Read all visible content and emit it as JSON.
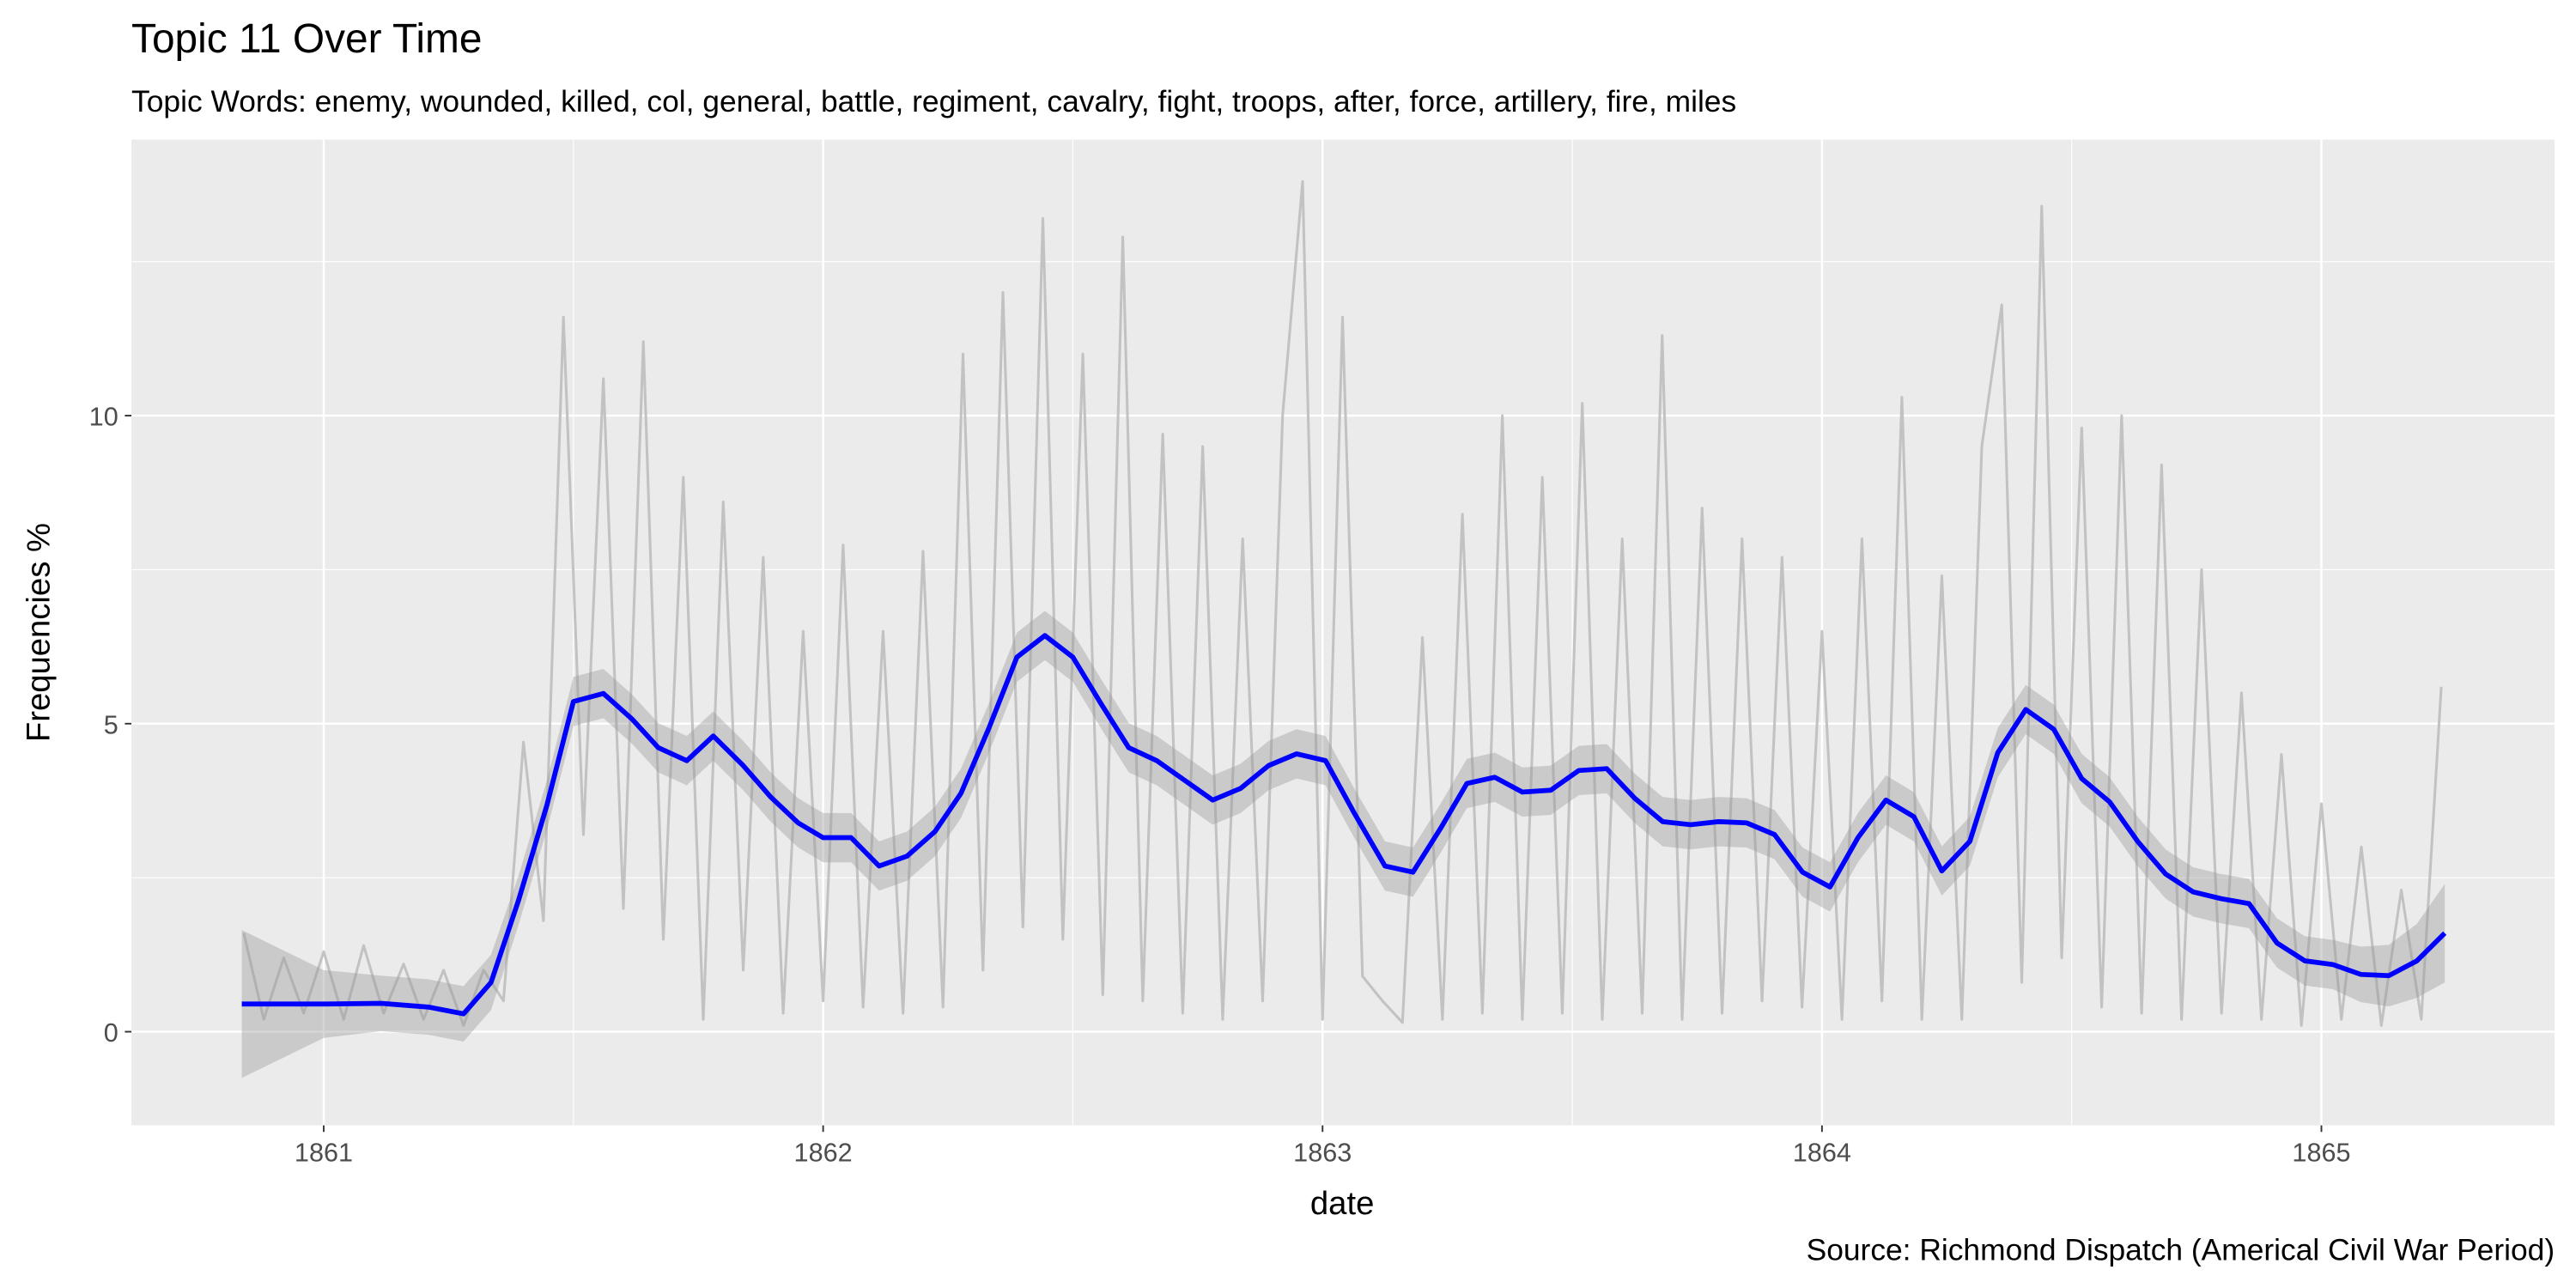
{
  "chart_data": {
    "type": "line",
    "title": "Topic 11 Over Time",
    "subtitle": "Topic Words: enemy, wounded, killed, col, general, battle, regiment, cavalry, fight, troops, after, force, artillery, fire, miles",
    "x_label": "date",
    "y_label": "Frequencies %",
    "caption": "Source: Richmond Dispatch (Americal Civil War Period)",
    "xlim": [
      1860.615,
      1865.467
    ],
    "xticks": [
      1861,
      1862,
      1863,
      1864,
      1865
    ],
    "ylim": [
      -1.52,
      14.48
    ],
    "yticks": [
      0,
      5,
      10
    ],
    "grid": true,
    "minor_grid": true,
    "panel_color": "#ebebeb",
    "series": [
      {
        "color": "#bebebe",
        "x": [
          1860.84,
          1860.88,
          1860.92,
          1860.96,
          1861.0,
          1861.04,
          1861.08,
          1861.12,
          1861.16,
          1861.2,
          1861.24,
          1861.28,
          1861.32,
          1861.36,
          1861.4,
          1861.44,
          1861.48,
          1861.52,
          1861.56,
          1861.6,
          1861.64,
          1861.68,
          1861.72,
          1861.76,
          1861.8,
          1861.84,
          1861.88,
          1861.92,
          1861.96,
          1862.0,
          1862.04,
          1862.08,
          1862.12,
          1862.16,
          1862.2,
          1862.24,
          1862.28,
          1862.32,
          1862.36,
          1862.4,
          1862.44,
          1862.48,
          1862.52,
          1862.56,
          1862.6,
          1862.64,
          1862.68,
          1862.72,
          1862.76,
          1862.8,
          1862.84,
          1862.88,
          1862.92,
          1862.96,
          1863.0,
          1863.04,
          1863.08,
          1863.12,
          1863.16,
          1863.2,
          1863.24,
          1863.28,
          1863.32,
          1863.36,
          1863.4,
          1863.44,
          1863.48,
          1863.52,
          1863.56,
          1863.6,
          1863.64,
          1863.68,
          1863.72,
          1863.76,
          1863.8,
          1863.84,
          1863.88,
          1863.92,
          1863.96,
          1864.0,
          1864.04,
          1864.08,
          1864.12,
          1864.16,
          1864.2,
          1864.24,
          1864.28,
          1864.32,
          1864.36,
          1864.4,
          1864.44,
          1864.48,
          1864.52,
          1864.56,
          1864.6,
          1864.64,
          1864.68,
          1864.72,
          1864.76,
          1864.8,
          1864.84,
          1864.88,
          1864.92,
          1864.96,
          1865.0,
          1865.04,
          1865.08,
          1865.12,
          1865.16,
          1865.2,
          1865.24
        ],
        "values": [
          1.6,
          0.2,
          1.2,
          0.3,
          1.3,
          0.2,
          1.4,
          0.3,
          1.1,
          0.2,
          1.0,
          0.1,
          1.0,
          0.5,
          4.7,
          1.8,
          11.6,
          3.2,
          10.6,
          2.0,
          11.2,
          1.5,
          9.0,
          0.2,
          8.6,
          1.0,
          7.7,
          0.3,
          6.5,
          0.5,
          7.9,
          0.4,
          6.5,
          0.3,
          7.8,
          0.4,
          11.0,
          1.0,
          12.0,
          1.7,
          13.2,
          1.5,
          11.0,
          0.6,
          12.9,
          0.5,
          9.7,
          0.3,
          9.5,
          0.2,
          8.0,
          0.5,
          10.0,
          13.8,
          0.2,
          11.6,
          0.9,
          0.5,
          0.15,
          6.4,
          0.2,
          8.4,
          0.3,
          10.0,
          0.2,
          9.0,
          0.3,
          10.2,
          0.2,
          8.0,
          0.3,
          11.3,
          0.2,
          8.5,
          0.3,
          8.0,
          0.5,
          7.7,
          0.4,
          6.5,
          0.2,
          8.0,
          0.5,
          10.3,
          0.2,
          7.4,
          0.2,
          9.5,
          11.8,
          0.8,
          13.4,
          1.2,
          9.8,
          0.4,
          10.0,
          0.3,
          9.2,
          0.2,
          7.5,
          0.3,
          5.5,
          0.2,
          4.5,
          0.1,
          3.7,
          0.2,
          3.0,
          0.1,
          2.3,
          0.2,
          5.6
        ]
      },
      {
        "color": "#0000ff",
        "band_color": "#999999",
        "x": [
          1860.836,
          1861.0,
          1861.115,
          1861.21,
          1861.28,
          1861.335,
          1861.39,
          1861.447,
          1861.5,
          1861.56,
          1861.618,
          1861.67,
          1861.727,
          1861.78,
          1861.84,
          1861.895,
          1861.95,
          1862.0,
          1862.056,
          1862.112,
          1862.168,
          1862.224,
          1862.276,
          1862.332,
          1862.388,
          1862.444,
          1862.5,
          1862.556,
          1862.612,
          1862.668,
          1862.724,
          1862.78,
          1862.836,
          1862.892,
          1862.948,
          1863.006,
          1863.062,
          1863.125,
          1863.181,
          1863.237,
          1863.289,
          1863.345,
          1863.4,
          1863.457,
          1863.513,
          1863.569,
          1863.625,
          1863.681,
          1863.737,
          1863.793,
          1863.849,
          1863.905,
          1863.961,
          1864.016,
          1864.072,
          1864.128,
          1864.184,
          1864.24,
          1864.296,
          1864.352,
          1864.408,
          1864.464,
          1864.52,
          1864.576,
          1864.632,
          1864.688,
          1864.743,
          1864.799,
          1864.855,
          1864.911,
          1864.967,
          1865.023,
          1865.079,
          1865.135,
          1865.191,
          1865.247
        ],
        "values": [
          0.45,
          0.45,
          0.46,
          0.4,
          0.29,
          0.8,
          2.13,
          3.68,
          5.36,
          5.49,
          5.07,
          4.61,
          4.4,
          4.8,
          4.32,
          3.81,
          3.39,
          3.15,
          3.15,
          2.69,
          2.85,
          3.25,
          3.87,
          4.93,
          6.08,
          6.43,
          6.08,
          5.33,
          4.61,
          4.4,
          4.08,
          3.76,
          3.95,
          4.32,
          4.51,
          4.4,
          3.57,
          2.69,
          2.59,
          3.31,
          4.03,
          4.13,
          3.89,
          3.92,
          4.24,
          4.27,
          3.79,
          3.41,
          3.36,
          3.41,
          3.39,
          3.2,
          2.59,
          2.35,
          3.15,
          3.76,
          3.49,
          2.61,
          3.09,
          4.53,
          5.23,
          4.91,
          4.11,
          3.73,
          3.09,
          2.56,
          2.27,
          2.16,
          2.08,
          1.44,
          1.15,
          1.09,
          0.93,
          0.91,
          1.15,
          1.6
        ],
        "lower": [
          -0.75,
          -0.1,
          0.01,
          -0.05,
          -0.16,
          0.35,
          1.73,
          3.28,
          4.96,
          5.09,
          4.67,
          4.21,
          4.0,
          4.4,
          3.92,
          3.41,
          2.99,
          2.75,
          2.75,
          2.29,
          2.45,
          2.85,
          3.47,
          4.53,
          5.68,
          6.03,
          5.68,
          4.93,
          4.21,
          4.0,
          3.68,
          3.36,
          3.55,
          3.92,
          4.11,
          4.0,
          3.17,
          2.29,
          2.19,
          2.91,
          3.63,
          3.73,
          3.49,
          3.52,
          3.84,
          3.87,
          3.39,
          3.01,
          2.96,
          3.01,
          2.99,
          2.8,
          2.19,
          1.95,
          2.75,
          3.36,
          3.09,
          2.21,
          2.69,
          4.13,
          4.83,
          4.51,
          3.71,
          3.33,
          2.69,
          2.16,
          1.87,
          1.76,
          1.68,
          1.04,
          0.75,
          0.69,
          0.48,
          0.41,
          0.55,
          0.8
        ],
        "upper": [
          1.65,
          1.0,
          0.91,
          0.85,
          0.74,
          1.25,
          2.53,
          4.08,
          5.76,
          5.89,
          5.47,
          5.01,
          4.8,
          5.2,
          4.72,
          4.21,
          3.79,
          3.55,
          3.55,
          3.09,
          3.25,
          3.65,
          4.27,
          5.33,
          6.48,
          6.83,
          6.48,
          5.73,
          5.01,
          4.8,
          4.48,
          4.16,
          4.35,
          4.72,
          4.91,
          4.8,
          3.97,
          3.09,
          2.99,
          3.71,
          4.43,
          4.53,
          4.29,
          4.32,
          4.64,
          4.67,
          4.19,
          3.81,
          3.76,
          3.81,
          3.79,
          3.6,
          2.99,
          2.75,
          3.55,
          4.16,
          3.89,
          3.01,
          3.49,
          4.93,
          5.63,
          5.31,
          4.51,
          4.13,
          3.49,
          2.96,
          2.67,
          2.56,
          2.48,
          1.84,
          1.55,
          1.49,
          1.38,
          1.41,
          1.75,
          2.4
        ]
      }
    ]
  }
}
